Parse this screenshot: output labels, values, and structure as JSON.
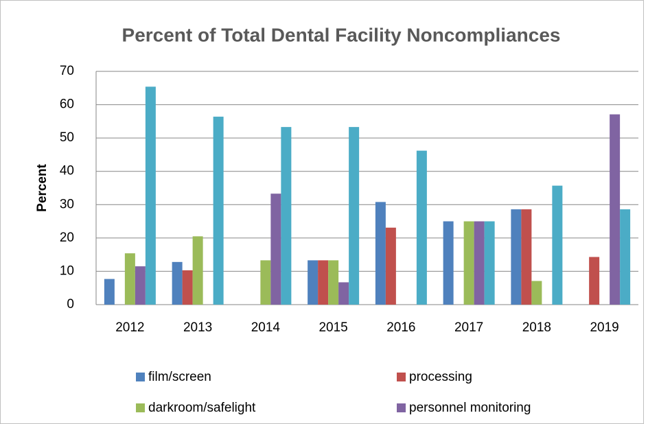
{
  "chart_data": {
    "type": "bar",
    "title": "Percent  of Total Dental Facility Noncompliances",
    "y_label": "Percent",
    "categories": [
      "2012",
      "2013",
      "2014",
      "2015",
      "2016",
      "2017",
      "2018",
      "2019"
    ],
    "series": [
      {
        "name": "film/screen",
        "color": "#4f81bd",
        "values": [
          7.7,
          12.8,
          0,
          13.3,
          30.8,
          25,
          28.6,
          0
        ]
      },
      {
        "name": "processing",
        "color": "#c0504d",
        "values": [
          0,
          10.3,
          0,
          13.3,
          23.1,
          0,
          28.6,
          14.3
        ]
      },
      {
        "name": "darkroom/safelight",
        "color": "#9bbb59",
        "values": [
          15.4,
          20.5,
          13.3,
          13.3,
          0,
          25,
          7.1,
          0
        ]
      },
      {
        "name": "personnel monitoring",
        "color": "#8064a2",
        "values": [
          11.5,
          0,
          33.3,
          6.7,
          0,
          25,
          0,
          57.1
        ]
      },
      {
        "color": "#4bacc6",
        "values": [
          65.4,
          56.4,
          53.3,
          53.3,
          46.2,
          25,
          35.7,
          28.6
        ]
      }
    ],
    "ylim": [
      0,
      70
    ],
    "yticks": [
      0,
      10,
      20,
      30,
      40,
      50,
      60,
      70
    ],
    "grid": true,
    "legend": "bottom"
  }
}
